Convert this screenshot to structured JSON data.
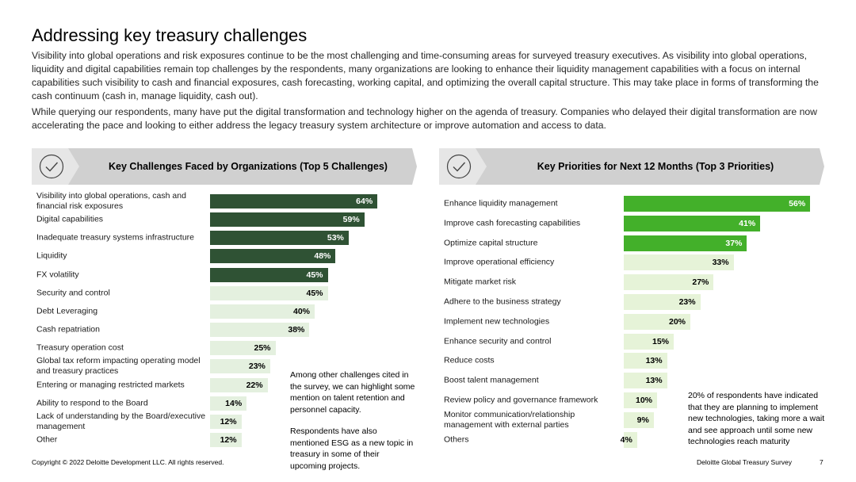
{
  "title": "Addressing key treasury challenges",
  "paragraphs": {
    "p1": "Visibility into global operations and risk exposures continue to be the most challenging and time-consuming areas for surveyed treasury executives. As visibility into global operations, liquidity and digital capabilities remain top challenges by the respondents, many organizations are looking to enhance their liquidity management capabilities with a focus on internal capabilities such visibility to cash and financial exposures, cash forecasting, working capital, and optimizing the overall capital structure.  This may take place in forms of transforming the cash continuum (cash in, manage liquidity, cash out).",
    "p2": "While querying our respondents, many have put the digital transformation and technology higher on the agenda of treasury. Companies who delayed their digital transformation are now accelerating the pace and looking to either address the legacy treasury system architecture or improve automation and access to data."
  },
  "banners": {
    "left": {
      "label": "Key Challenges Faced by Organizations (Top 5 Challenges)",
      "icon": "checkmark-circle-icon"
    },
    "right": {
      "label": "Key Priorities for Next 12 Months (Top 3 Priorities)",
      "icon": "checkmark-circle-icon"
    }
  },
  "colors": {
    "challenges_top": "#2f5234",
    "challenges_rest": "#e4f0df",
    "priorities_top": "#43b02a",
    "priorities_rest": "#e6f3d8",
    "banner": "#d0d0d0"
  },
  "chart_data": [
    {
      "type": "bar",
      "orientation": "horizontal",
      "title": "Key Challenges Faced by Organizations (Top 5 Challenges)",
      "categories": [
        "Visibility into global operations, cash and financial risk exposures",
        "Digital capabilities",
        "Inadequate treasury systems infrastructure",
        "Liquidity",
        "FX volatility",
        "Security and control",
        "Debt Leveraging",
        "Cash repatriation",
        "Treasury operation cost",
        "Global tax reform impacting operating model and treasury practices",
        "Entering or managing restricted markets",
        "Ability to respond to the Board",
        "Lack of understanding by the Board/executive management",
        "Other"
      ],
      "values": [
        64,
        59,
        53,
        48,
        45,
        45,
        40,
        38,
        25,
        23,
        22,
        14,
        12,
        12
      ],
      "value_labels": [
        "64%",
        "59%",
        "53%",
        "48%",
        "45%",
        "45%",
        "40%",
        "38%",
        "25%",
        "23%",
        "22%",
        "14%",
        "12%",
        "12%"
      ],
      "highlighted_top": 5,
      "unit": "%"
    },
    {
      "type": "bar",
      "orientation": "horizontal",
      "title": "Key Priorities for Next 12 Months (Top 3 Priorities)",
      "categories": [
        "Enhance liquidity management",
        "Improve cash forecasting capabilities",
        "Optimize capital structure",
        "Improve operational efficiency",
        "Mitigate market risk",
        "Adhere to the business strategy",
        "Implement new technologies",
        "Enhance security and control",
        "Reduce costs",
        "Boost talent management",
        "Review policy and governance framework",
        "Monitor communication/relationship management with external parties",
        "Others"
      ],
      "values": [
        56,
        41,
        37,
        33,
        27,
        23,
        20,
        15,
        13,
        13,
        10,
        9,
        4
      ],
      "value_labels": [
        "56%",
        "41%",
        "37%",
        "33%",
        "27%",
        "23%",
        "20%",
        "15%",
        "13%",
        "13%",
        "10%",
        "9%",
        "4%"
      ],
      "highlighted_top": 3,
      "unit": "%"
    }
  ],
  "notes": {
    "note1": "Among other challenges cited in the survey, we can highlight some mention on talent retention and personnel capacity.",
    "note2": "Respondents have also mentioned ESG as a new topic in treasury in some of their upcoming projects.",
    "note3": "20% of respondents have indicated that they are planning to implement new technologies, taking more a wait and see approach until some new technologies reach maturity"
  },
  "footer": {
    "copyright": "Copyright © 2022 Deloitte Development LLC. All rights reserved.",
    "survey": "Deloitte Global Treasury Survey",
    "page": "7"
  }
}
